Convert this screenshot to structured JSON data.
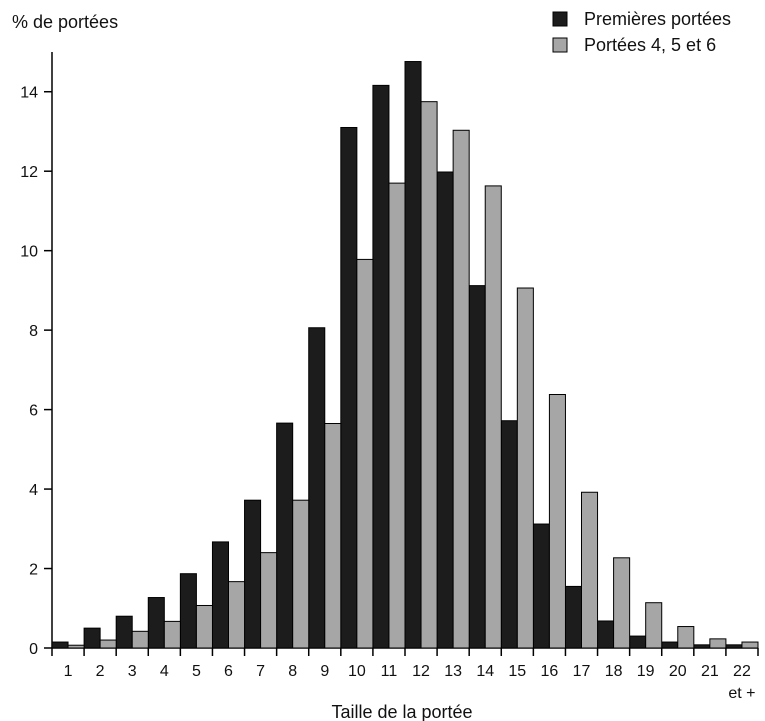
{
  "chart_data": {
    "type": "bar",
    "ylabel": "% de portées",
    "xlabel": "Taille de la portée",
    "categories": [
      "1",
      "2",
      "3",
      "4",
      "5",
      "6",
      "7",
      "8",
      "9",
      "10",
      "11",
      "12",
      "13",
      "14",
      "15",
      "16",
      "17",
      "18",
      "19",
      "20",
      "21",
      "22"
    ],
    "last_category_sublabel": "et +",
    "ylim": [
      0,
      15
    ],
    "yticks": [
      0,
      2,
      4,
      6,
      8,
      10,
      12,
      14
    ],
    "grid": false,
    "legend_position": "top-right",
    "series": [
      {
        "name": "Premières portées",
        "color": "#1c1c1c",
        "values": [
          0.15,
          0.5,
          0.8,
          1.27,
          1.87,
          2.67,
          3.72,
          5.66,
          8.06,
          13.1,
          14.16,
          14.76,
          11.98,
          9.12,
          5.72,
          3.12,
          1.55,
          0.68,
          0.3,
          0.15,
          0.08,
          0.08
        ]
      },
      {
        "name": "Portées 4, 5 et 6",
        "color": "#a6a6a6",
        "values": [
          0.07,
          0.2,
          0.42,
          0.67,
          1.07,
          1.67,
          2.4,
          3.72,
          5.65,
          9.78,
          11.7,
          13.75,
          13.03,
          11.63,
          9.06,
          6.38,
          3.92,
          2.27,
          1.14,
          0.54,
          0.23,
          0.15
        ]
      }
    ]
  }
}
